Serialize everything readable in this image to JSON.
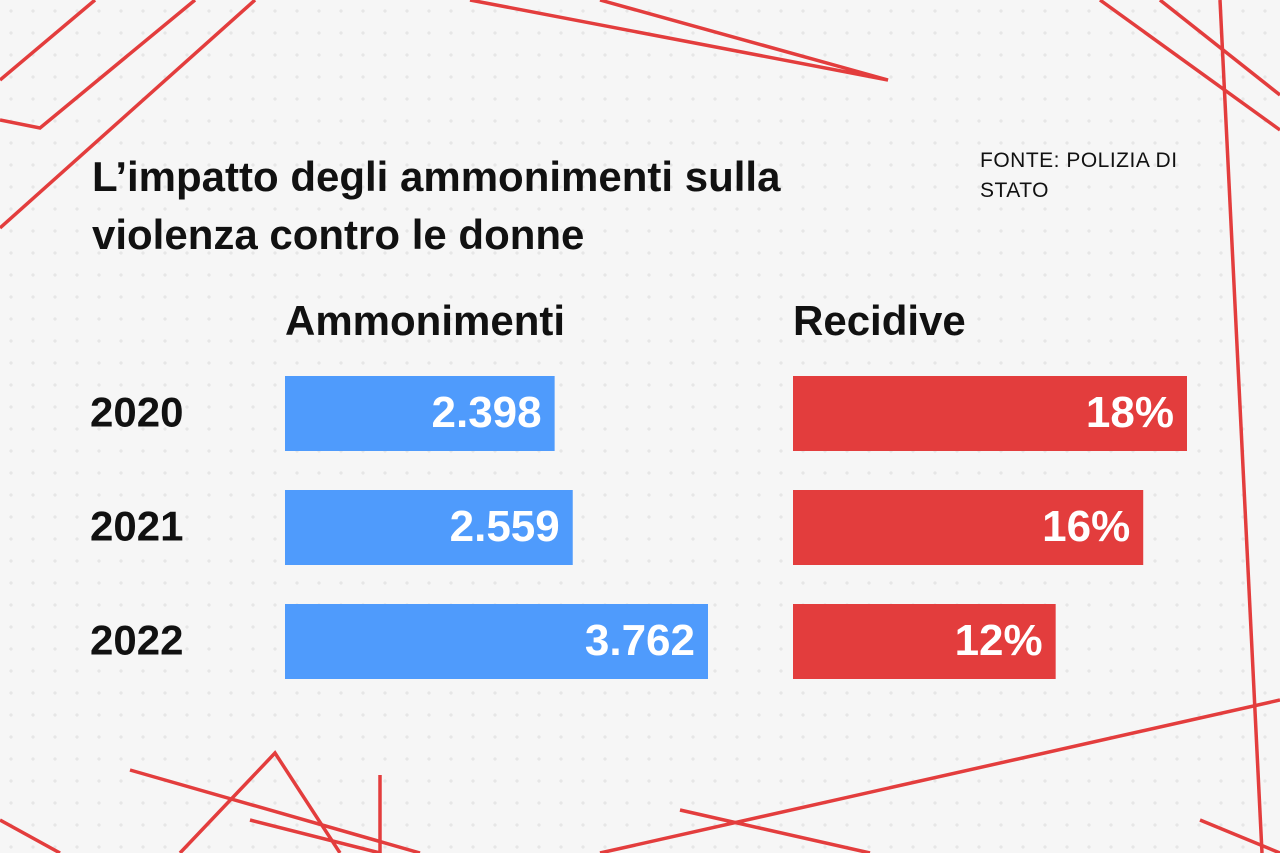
{
  "chart_data": {
    "type": "bar",
    "title": "L’impatto degli ammonimenti sulla violenza contro le donne",
    "source": "FONTE: POLIZIA DI STATO",
    "categories": [
      "2020",
      "2021",
      "2022"
    ],
    "series": [
      {
        "name": "Ammonimenti",
        "color": "#4f9bfc",
        "values": [
          2398,
          2559,
          3762
        ],
        "value_labels": [
          "2.398",
          "2.559",
          "3.762"
        ]
      },
      {
        "name": "Recidive",
        "color": "#e33d3d",
        "values": [
          18,
          16,
          12
        ],
        "value_labels": [
          "18%",
          "16%",
          "12%"
        ]
      }
    ]
  }
}
